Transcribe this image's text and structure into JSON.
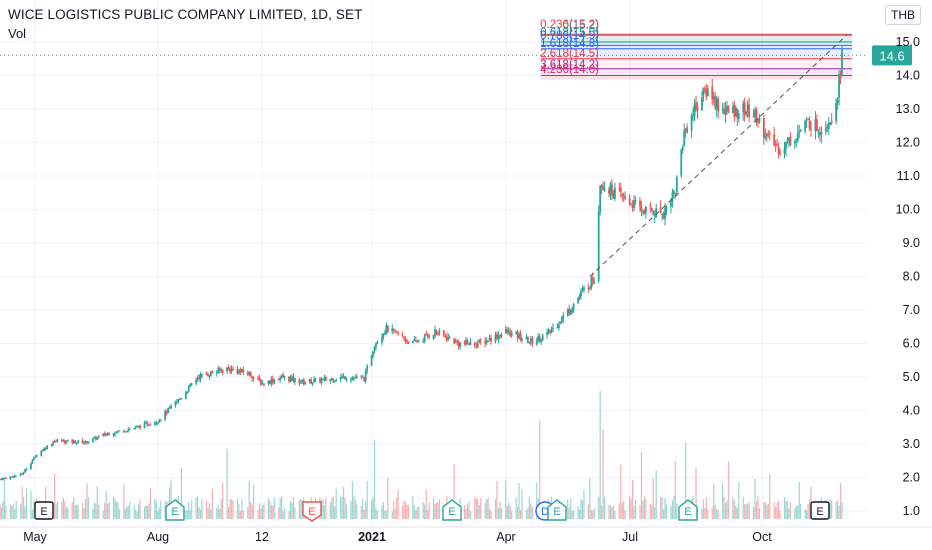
{
  "header": {
    "title": "WICE LOGISTICS PUBLIC COMPANY LIMITED, 1D, SET",
    "volume_label": "Vol",
    "currency": "THB"
  },
  "price_scale": {
    "ticks": [
      "15.0",
      "14.0",
      "13.0",
      "12.0",
      "11.0",
      "10.0",
      "9.0",
      "8.0",
      "7.0",
      "6.0",
      "5.0",
      "4.0",
      "3.0",
      "2.0",
      "1.0"
    ],
    "last_price_label": "14.6",
    "last_price_color": "#26a69a"
  },
  "time_axis": {
    "labels": [
      "May",
      "Aug",
      "12",
      "2021",
      "Apr",
      "Jul",
      "Oct"
    ]
  },
  "event_markers": [
    {
      "label": "E",
      "color": "#131722"
    },
    {
      "label": "E",
      "color": "#26a69a"
    },
    {
      "label": "E",
      "color": "#ef5350"
    },
    {
      "label": "E",
      "color": "#26a69a"
    },
    {
      "label": "D",
      "color": "#2962ff"
    },
    {
      "label": "E",
      "color": "#26a69a"
    },
    {
      "label": "E",
      "color": "#26a69a"
    },
    {
      "label": "E",
      "color": "#131722"
    }
  ],
  "fib_levels": [
    {
      "label": "0.236(15.2)",
      "value": 15.2,
      "color": "#f23645"
    },
    {
      "label": "0(15.2)",
      "value": 15.2,
      "color": "#787b86"
    },
    {
      "label": "0.618(15.0)",
      "value": 15.0,
      "color": "#089981"
    },
    {
      "label": "0.786(14.9)",
      "value": 14.9,
      "color": "#2962ff"
    },
    {
      "label": "1.618(14.8)",
      "value": 14.8,
      "color": "#2962ff"
    },
    {
      "label": "2.618(14.5)",
      "value": 14.5,
      "color": "#f23645"
    },
    {
      "label": "3.618(14.2)",
      "value": 14.2,
      "color": "#9c27b0"
    },
    {
      "label": "4.236(14.0)",
      "value": 14.0,
      "color": "#e91e63"
    }
  ],
  "colors": {
    "up": "#26a69a",
    "down": "#ef5350",
    "grid": "#f0f3fa",
    "text": "#131722"
  },
  "chart_data": {
    "type": "candlestick",
    "title": "WICE LOGISTICS PUBLIC COMPANY LIMITED, 1D, SET",
    "ylim": [
      0.7,
      15.8
    ],
    "y_scale": "linear",
    "grid": true,
    "x_range": [
      "2020-04-27",
      "2021-11-19"
    ],
    "price_anchors": [
      [
        "2020-04-27",
        1.95
      ],
      [
        "2020-05-12",
        2.1
      ],
      [
        "2020-05-22",
        2.7
      ],
      [
        "2020-06-03",
        3.1
      ],
      [
        "2020-06-24",
        3.05
      ],
      [
        "2020-07-08",
        3.3
      ],
      [
        "2020-07-29",
        3.5
      ],
      [
        "2020-08-12",
        3.7
      ],
      [
        "2020-08-28",
        4.4
      ],
      [
        "2020-09-08",
        5.0
      ],
      [
        "2020-09-28",
        5.25
      ],
      [
        "2020-10-13",
        5.1
      ],
      [
        "2020-10-22",
        4.8
      ],
      [
        "2020-11-04",
        5.0
      ],
      [
        "2020-11-18",
        4.85
      ],
      [
        "2020-12-02",
        4.9
      ],
      [
        "2020-12-16",
        5.0
      ],
      [
        "2020-12-30",
        4.95
      ],
      [
        "2021-01-06",
        6.0
      ],
      [
        "2021-01-14",
        6.45
      ],
      [
        "2021-02-01",
        6.0
      ],
      [
        "2021-02-16",
        6.35
      ],
      [
        "2021-03-04",
        6.0
      ],
      [
        "2021-03-18",
        6.0
      ],
      [
        "2021-04-05",
        6.35
      ],
      [
        "2021-04-22",
        6.05
      ],
      [
        "2021-05-04",
        6.3
      ],
      [
        "2021-05-18",
        7.0
      ],
      [
        "2021-05-28",
        7.6
      ],
      [
        "2021-06-04",
        7.95
      ],
      [
        "2021-06-08",
        10.8
      ],
      [
        "2021-06-22",
        10.4
      ],
      [
        "2021-07-06",
        10.0
      ],
      [
        "2021-07-21",
        9.9
      ],
      [
        "2021-07-29",
        10.6
      ],
      [
        "2021-08-04",
        12.3
      ],
      [
        "2021-08-12",
        13.1
      ],
      [
        "2021-08-20",
        13.6
      ],
      [
        "2021-08-27",
        13.1
      ],
      [
        "2021-09-03",
        12.9
      ],
      [
        "2021-09-14",
        13.0
      ],
      [
        "2021-09-23",
        12.7
      ],
      [
        "2021-09-30",
        12.1
      ],
      [
        "2021-10-08",
        11.8
      ],
      [
        "2021-10-18",
        12.2
      ],
      [
        "2021-10-28",
        12.6
      ],
      [
        "2021-11-05",
        12.4
      ],
      [
        "2021-11-12",
        12.8
      ],
      [
        "2021-11-16",
        13.5
      ],
      [
        "2021-11-19",
        14.6
      ]
    ],
    "last_price": 14.6,
    "trend_line": {
      "from": [
        "2021-06-01",
        8.0
      ],
      "to": [
        "2021-11-22",
        15.2
      ]
    },
    "volume_spikes": [
      [
        "2020-05-12",
        0.25
      ],
      [
        "2020-06-03",
        0.35
      ],
      [
        "2020-07-08",
        0.22
      ],
      [
        "2020-08-28",
        0.4
      ],
      [
        "2020-09-28",
        0.55
      ],
      [
        "2020-10-13",
        0.3
      ],
      [
        "2020-12-16",
        0.25
      ],
      [
        "2021-01-06",
        0.62
      ],
      [
        "2021-03-01",
        0.28
      ],
      [
        "2021-04-05",
        0.3
      ],
      [
        "2021-04-28",
        0.62
      ],
      [
        "2021-06-01",
        0.32
      ],
      [
        "2021-06-08",
        1.0
      ],
      [
        "2021-06-10",
        0.7
      ],
      [
        "2021-06-22",
        0.42
      ],
      [
        "2021-07-06",
        0.52
      ],
      [
        "2021-07-16",
        0.38
      ],
      [
        "2021-07-29",
        0.45
      ],
      [
        "2021-08-05",
        0.6
      ],
      [
        "2021-08-12",
        0.4
      ],
      [
        "2021-09-03",
        0.3
      ],
      [
        "2021-10-01",
        0.35
      ],
      [
        "2021-11-18",
        0.28
      ]
    ]
  }
}
